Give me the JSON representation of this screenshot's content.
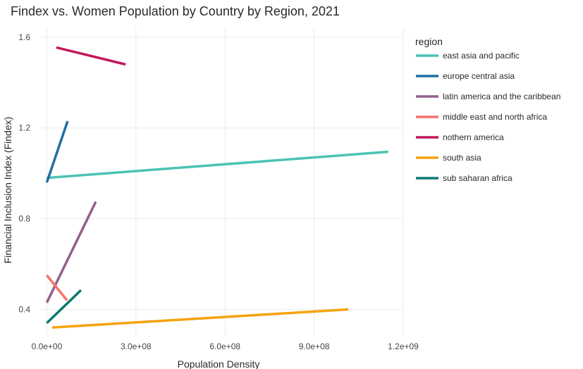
{
  "chart_data": {
    "type": "line",
    "title": "Findex vs. Women Population by Country by Region, 2021",
    "xlabel": "Population Density",
    "ylabel": "Financial Inclusion Index (Findex)",
    "xlim": [
      -20000000,
      1200000000
    ],
    "ylim": [
      0.28,
      1.64
    ],
    "xticks": [
      0,
      300000000,
      600000000,
      900000000,
      1200000000
    ],
    "xtick_labels": [
      "0.0e+00",
      "3.0e+08",
      "6.0e+08",
      "9.0e+08",
      "1.2e+09"
    ],
    "yticks": [
      0.4,
      0.8,
      1.2,
      1.6
    ],
    "ytick_labels": [
      "0.4",
      "0.8",
      "1.2",
      "1.6"
    ],
    "grid": true,
    "legend_title": "region",
    "legend_position": "right",
    "series": [
      {
        "name": "east asia and pacific",
        "color": "#4cc3b4",
        "x": [
          0,
          1150000000
        ],
        "y": [
          0.98,
          1.095
        ]
      },
      {
        "name": "europe central asia",
        "color": "#1f6fa0",
        "x": [
          0,
          70000000
        ],
        "y": [
          0.96,
          1.23
        ]
      },
      {
        "name": "latin america and the caribbean",
        "color": "#93608c",
        "x": [
          0,
          165000000
        ],
        "y": [
          0.43,
          0.875
        ]
      },
      {
        "name": "middle east and north africa",
        "color": "#f4736f",
        "x": [
          0,
          68000000
        ],
        "y": [
          0.55,
          0.44
        ]
      },
      {
        "name": "nothern america",
        "color": "#c2185b",
        "x": [
          32000000,
          265000000
        ],
        "y": [
          1.555,
          1.48
        ]
      },
      {
        "name": "south asia",
        "color": "#f5a30f",
        "x": [
          18000000,
          1015000000
        ],
        "y": [
          0.32,
          0.4
        ]
      },
      {
        "name": "sub saharan africa",
        "color": "#0e7a70",
        "x": [
          0,
          115000000
        ],
        "y": [
          0.34,
          0.485
        ]
      }
    ]
  }
}
